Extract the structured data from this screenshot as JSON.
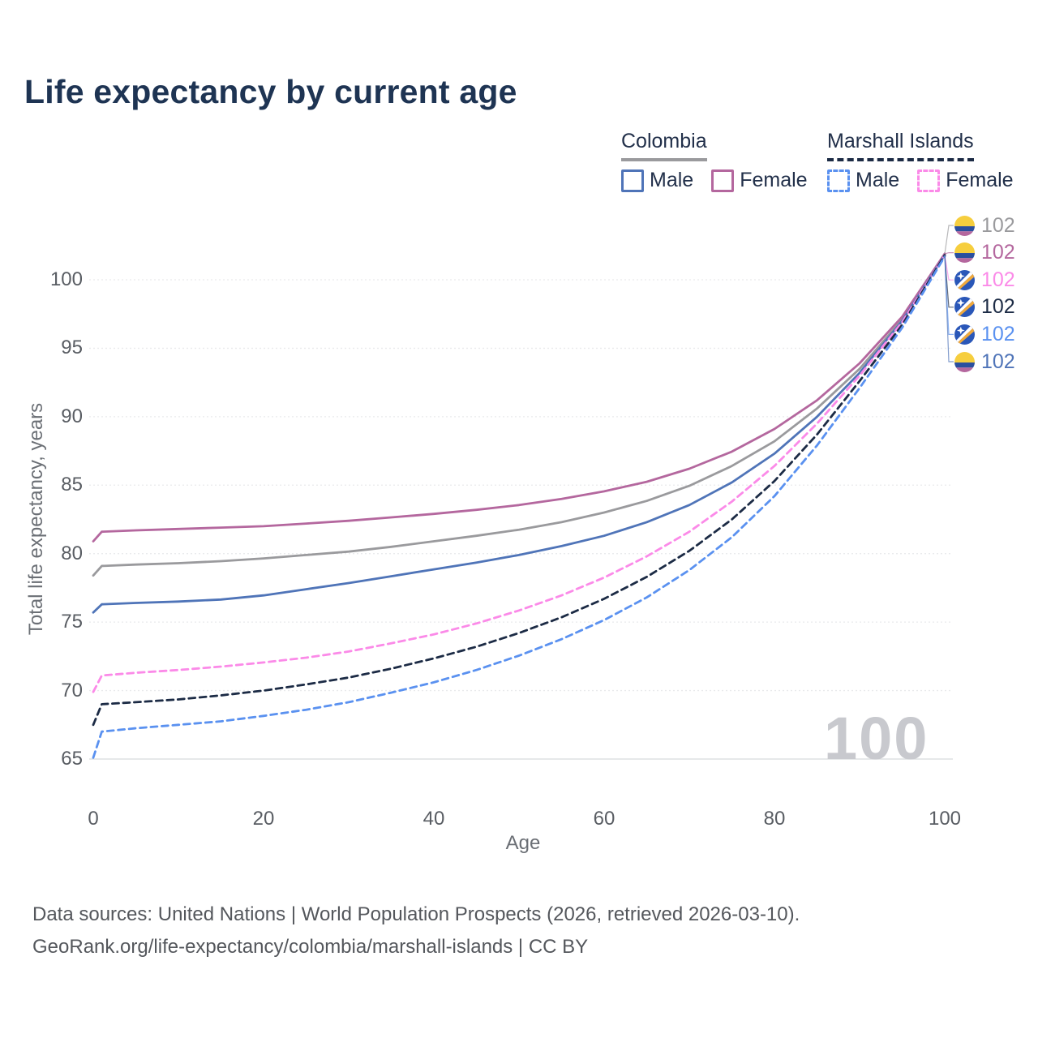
{
  "title": "Life expectancy by current age",
  "watermark": "100",
  "footer": {
    "line1": "Data sources: United Nations | World Population Prospects (2026, retrieved 2026-03-10).",
    "line2": "GeoRank.org/life-expectancy/colombia/marshall-islands | CC BY"
  },
  "legend": {
    "groups": [
      {
        "label": "Colombia",
        "line_style": "solid",
        "underline_color": "#9a9a9d",
        "items": [
          {
            "label": "Male",
            "color": "#4f74b8"
          },
          {
            "label": "Female",
            "color": "#b4679e"
          }
        ]
      },
      {
        "label": "Marshall Islands",
        "line_style": "dashed",
        "underline_color": "#1c2b45",
        "items": [
          {
            "label": "Male",
            "color": "#5a91f0"
          },
          {
            "label": "Female",
            "color": "#fb8ae8"
          }
        ]
      }
    ]
  },
  "chart_data": {
    "type": "line",
    "title": "Life expectancy by current age",
    "xlabel": "Age",
    "ylabel": "Total life expectancy, years",
    "xlim": [
      0,
      100
    ],
    "ylim": [
      63,
      103
    ],
    "x_ticks": [
      0,
      20,
      40,
      60,
      80,
      100
    ],
    "y_ticks": [
      65,
      70,
      75,
      80,
      85,
      90,
      95,
      100
    ],
    "grid": "horizontal",
    "legend_position": "top-right",
    "x": [
      0,
      1,
      5,
      10,
      15,
      20,
      25,
      30,
      35,
      40,
      45,
      50,
      55,
      60,
      65,
      70,
      75,
      80,
      85,
      90,
      95,
      100
    ],
    "series": [
      {
        "id": "colombia-combined",
        "country": "Colombia",
        "group": "combined",
        "color": "#9a9a9d",
        "dashed": false,
        "label_row": 0,
        "end_label": "102",
        "flag": "co",
        "values": [
          78.4,
          79.1,
          79.2,
          79.3,
          79.45,
          79.65,
          79.9,
          80.15,
          80.5,
          80.9,
          81.3,
          81.75,
          82.3,
          83.0,
          83.85,
          84.95,
          86.4,
          88.2,
          90.6,
          93.5,
          97.1,
          101.9
        ]
      },
      {
        "id": "colombia-female",
        "country": "Colombia",
        "group": "Female",
        "color": "#b4679e",
        "dashed": false,
        "label_row": 1,
        "end_label": "102",
        "flag": "co",
        "values": [
          80.9,
          81.6,
          81.7,
          81.8,
          81.9,
          82.0,
          82.2,
          82.4,
          82.65,
          82.9,
          83.2,
          83.55,
          84.0,
          84.55,
          85.25,
          86.2,
          87.45,
          89.1,
          91.2,
          93.9,
          97.3,
          101.9
        ]
      },
      {
        "id": "colombia-male",
        "country": "Colombia",
        "group": "Male",
        "color": "#4f74b8",
        "dashed": false,
        "label_row": 5,
        "end_label": "102",
        "flag": "co",
        "values": [
          75.7,
          76.3,
          76.4,
          76.5,
          76.65,
          76.95,
          77.4,
          77.85,
          78.35,
          78.85,
          79.35,
          79.9,
          80.55,
          81.3,
          82.3,
          83.55,
          85.2,
          87.3,
          90.0,
          93.2,
          97.0,
          101.8
        ]
      },
      {
        "id": "marshall-islands-female",
        "country": "Marshall Islands",
        "group": "Female",
        "color": "#fb8ae8",
        "dashed": true,
        "label_row": 2,
        "end_label": "102",
        "flag": "mh",
        "values": [
          69.9,
          71.1,
          71.3,
          71.5,
          71.75,
          72.05,
          72.4,
          72.85,
          73.45,
          74.1,
          74.9,
          75.85,
          76.95,
          78.25,
          79.8,
          81.6,
          83.8,
          86.4,
          89.5,
          93.0,
          96.9,
          101.8
        ]
      },
      {
        "id": "marshall-islands-combined",
        "country": "Marshall Islands",
        "group": "combined",
        "color": "#1c2b45",
        "dashed": true,
        "label_row": 3,
        "end_label": "102",
        "flag": "mh",
        "values": [
          67.5,
          69.0,
          69.15,
          69.35,
          69.65,
          70.0,
          70.45,
          70.95,
          71.6,
          72.35,
          73.2,
          74.2,
          75.35,
          76.7,
          78.3,
          80.2,
          82.5,
          85.3,
          88.7,
          92.6,
          96.7,
          101.8
        ]
      },
      {
        "id": "marshall-islands-male",
        "country": "Marshall Islands",
        "group": "Male",
        "color": "#5a91f0",
        "dashed": true,
        "label_row": 4,
        "end_label": "102",
        "flag": "mh",
        "values": [
          65.1,
          67.0,
          67.25,
          67.5,
          67.75,
          68.15,
          68.6,
          69.15,
          69.85,
          70.6,
          71.5,
          72.55,
          73.75,
          75.15,
          76.8,
          78.8,
          81.2,
          84.2,
          87.9,
          92.1,
          96.5,
          101.7
        ]
      }
    ]
  },
  "layout_colors": {
    "title": "#1e3453",
    "axis_text": "#595d63",
    "axis_title": "#6b6f75",
    "gridline": "#e9eaec",
    "bottom_gridline": "#d8d9dc",
    "watermark": "#c8c9ce",
    "footer": "#54575c"
  }
}
